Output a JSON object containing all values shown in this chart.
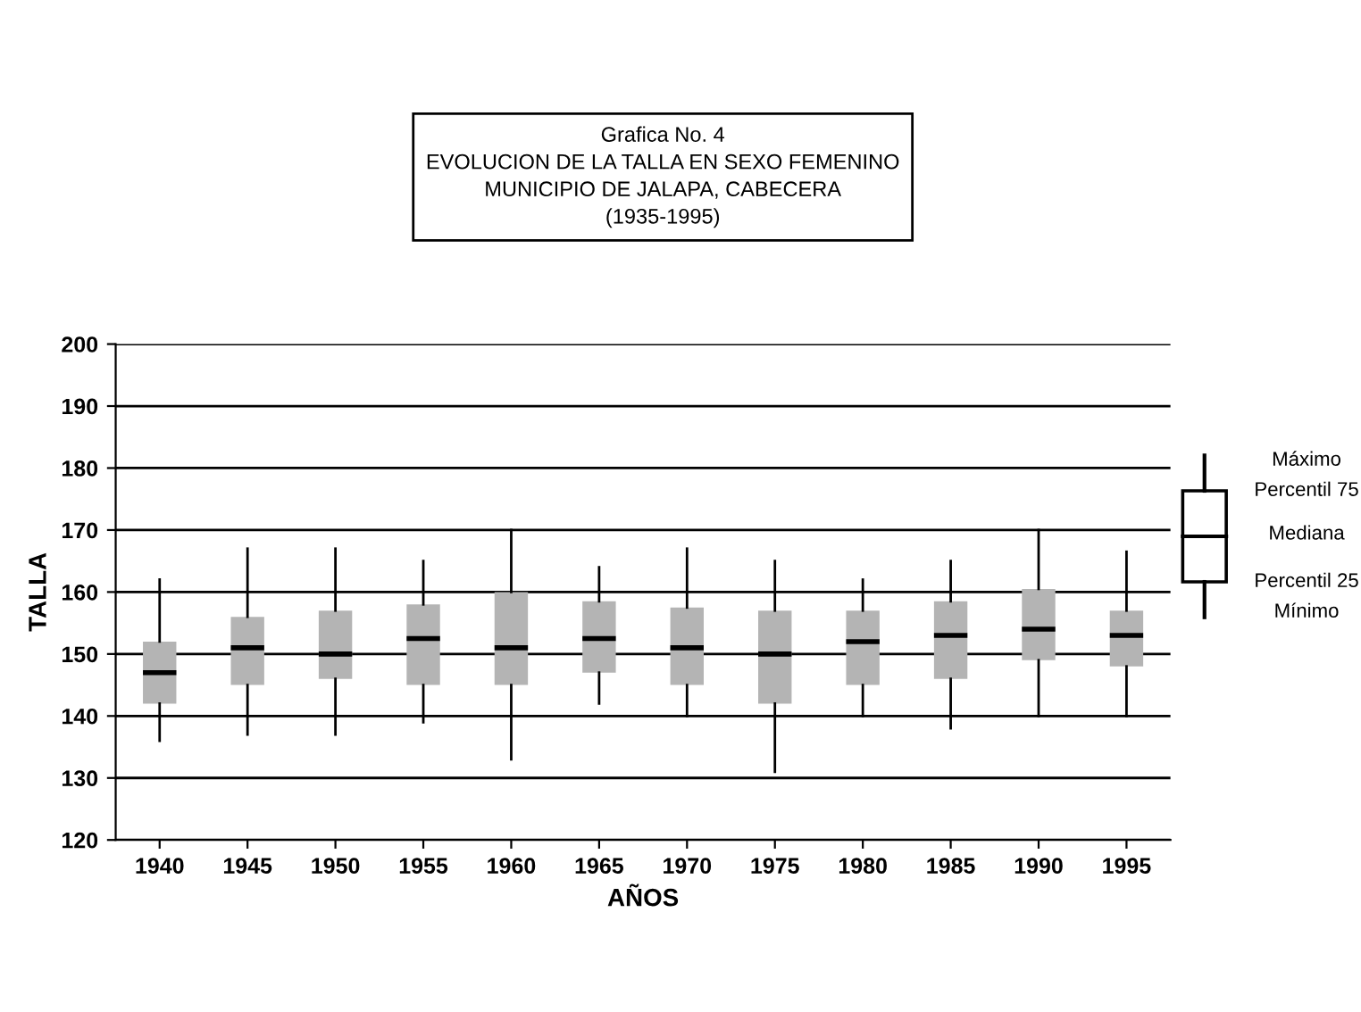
{
  "chart_data": {
    "type": "box",
    "title": "Grafica No. 4\nEVOLUCION DE LA TALLA EN SEXO FEMENINO\nMUNICIPIO DE JALAPA, CABECERA\n(1935-1995)",
    "xlabel": "AÑOS",
    "ylabel": "TALLA",
    "categories": [
      "1940",
      "1945",
      "1950",
      "1955",
      "1960",
      "1965",
      "1970",
      "1975",
      "1980",
      "1985",
      "1990",
      "1995"
    ],
    "color": "#b4b4b4",
    "ylim": [
      120,
      200
    ],
    "yticks": [
      120,
      130,
      140,
      150,
      160,
      170,
      180,
      190,
      200
    ],
    "grid": "y",
    "boxes": [
      {
        "low": 136,
        "q1": 142,
        "median": 147,
        "q3": 152,
        "high": 162
      },
      {
        "low": 137,
        "q1": 145,
        "median": 151,
        "q3": 156,
        "high": 167
      },
      {
        "low": 137,
        "q1": 146,
        "median": 150,
        "q3": 157,
        "high": 167
      },
      {
        "low": 139,
        "q1": 145,
        "median": 152.5,
        "q3": 158,
        "high": 165
      },
      {
        "low": 133,
        "q1": 145,
        "median": 151,
        "q3": 160,
        "high": 170
      },
      {
        "low": 142,
        "q1": 147,
        "median": 152.5,
        "q3": 158.5,
        "high": 164
      },
      {
        "low": 140,
        "q1": 145,
        "median": 151,
        "q3": 157.5,
        "high": 167
      },
      {
        "low": 131,
        "q1": 142,
        "median": 150,
        "q3": 157,
        "high": 165
      },
      {
        "low": 140,
        "q1": 145,
        "median": 152,
        "q3": 157,
        "high": 162
      },
      {
        "low": 138,
        "q1": 146,
        "median": 153,
        "q3": 158.5,
        "high": 165
      },
      {
        "low": 140,
        "q1": 149,
        "median": 154,
        "q3": 160.5,
        "high": 170
      },
      {
        "low": 140,
        "q1": 148,
        "median": 153,
        "q3": 157,
        "high": 166.5
      }
    ],
    "annotations": [
      "Máximo",
      "Percentil 75",
      "Mediana",
      "Percentil 25",
      "Mínimo"
    ]
  }
}
